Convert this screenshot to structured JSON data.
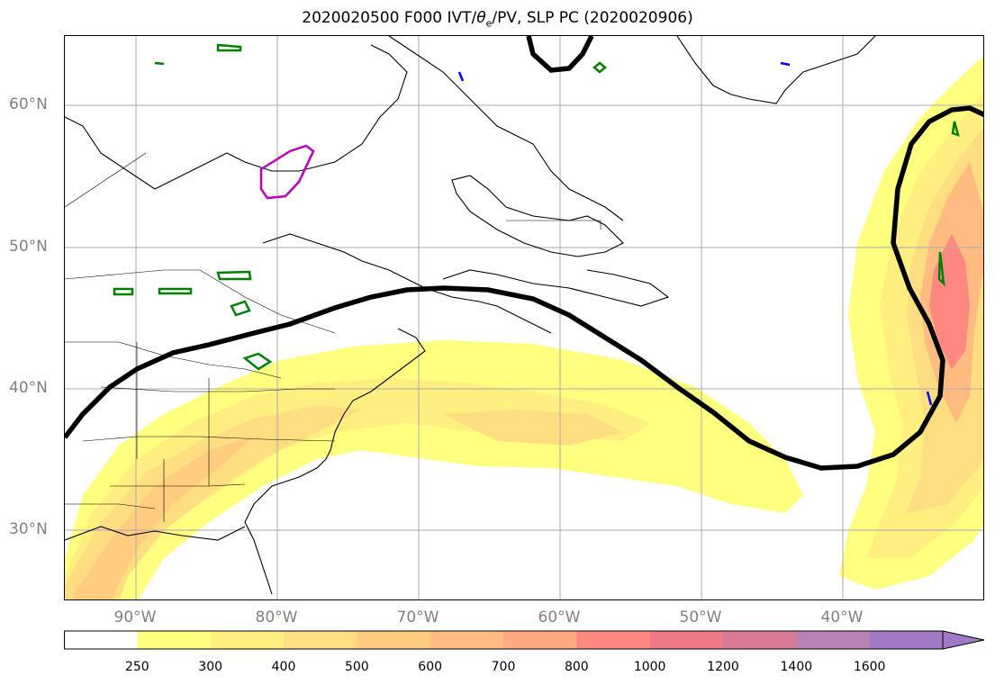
{
  "title": "2020020500 F000 IVT/θe/PV, SLP PC (2020020906)",
  "title_parts": {
    "prefix": "2020020500 F000 IVT/",
    "theta": "θ",
    "sub": "e",
    "suffix": "/PV, SLP PC (2020020906)"
  },
  "map": {
    "projection": "PlateCarree",
    "lon_range": [
      -95,
      -30
    ],
    "lat_range": [
      25,
      65
    ],
    "lat_labels": [
      "60°N",
      "50°N",
      "40°N",
      "30°N"
    ],
    "lon_labels": [
      "90°W",
      "80°W",
      "70°W",
      "60°W",
      "50°W",
      "40°W"
    ],
    "gridlines": true,
    "contour_colors": {
      "slp_pc": "#000000",
      "theta_e": "#008000",
      "pv": "#0000ff",
      "other": "#bb00bb"
    }
  },
  "colorbar": {
    "orientation": "horizontal",
    "extend": "max",
    "levels": [
      "250",
      "300",
      "400",
      "500",
      "600",
      "700",
      "800",
      "1000",
      "1200",
      "1400",
      "1600"
    ],
    "colors": [
      "#ffffff",
      "#ffff80",
      "#ffee80",
      "#ffdd80",
      "#ffcc80",
      "#ffbb80",
      "#ffaa80",
      "#ff8880",
      "#ee7a85",
      "#d87a95",
      "#b880b5",
      "#a07ac4"
    ]
  }
}
